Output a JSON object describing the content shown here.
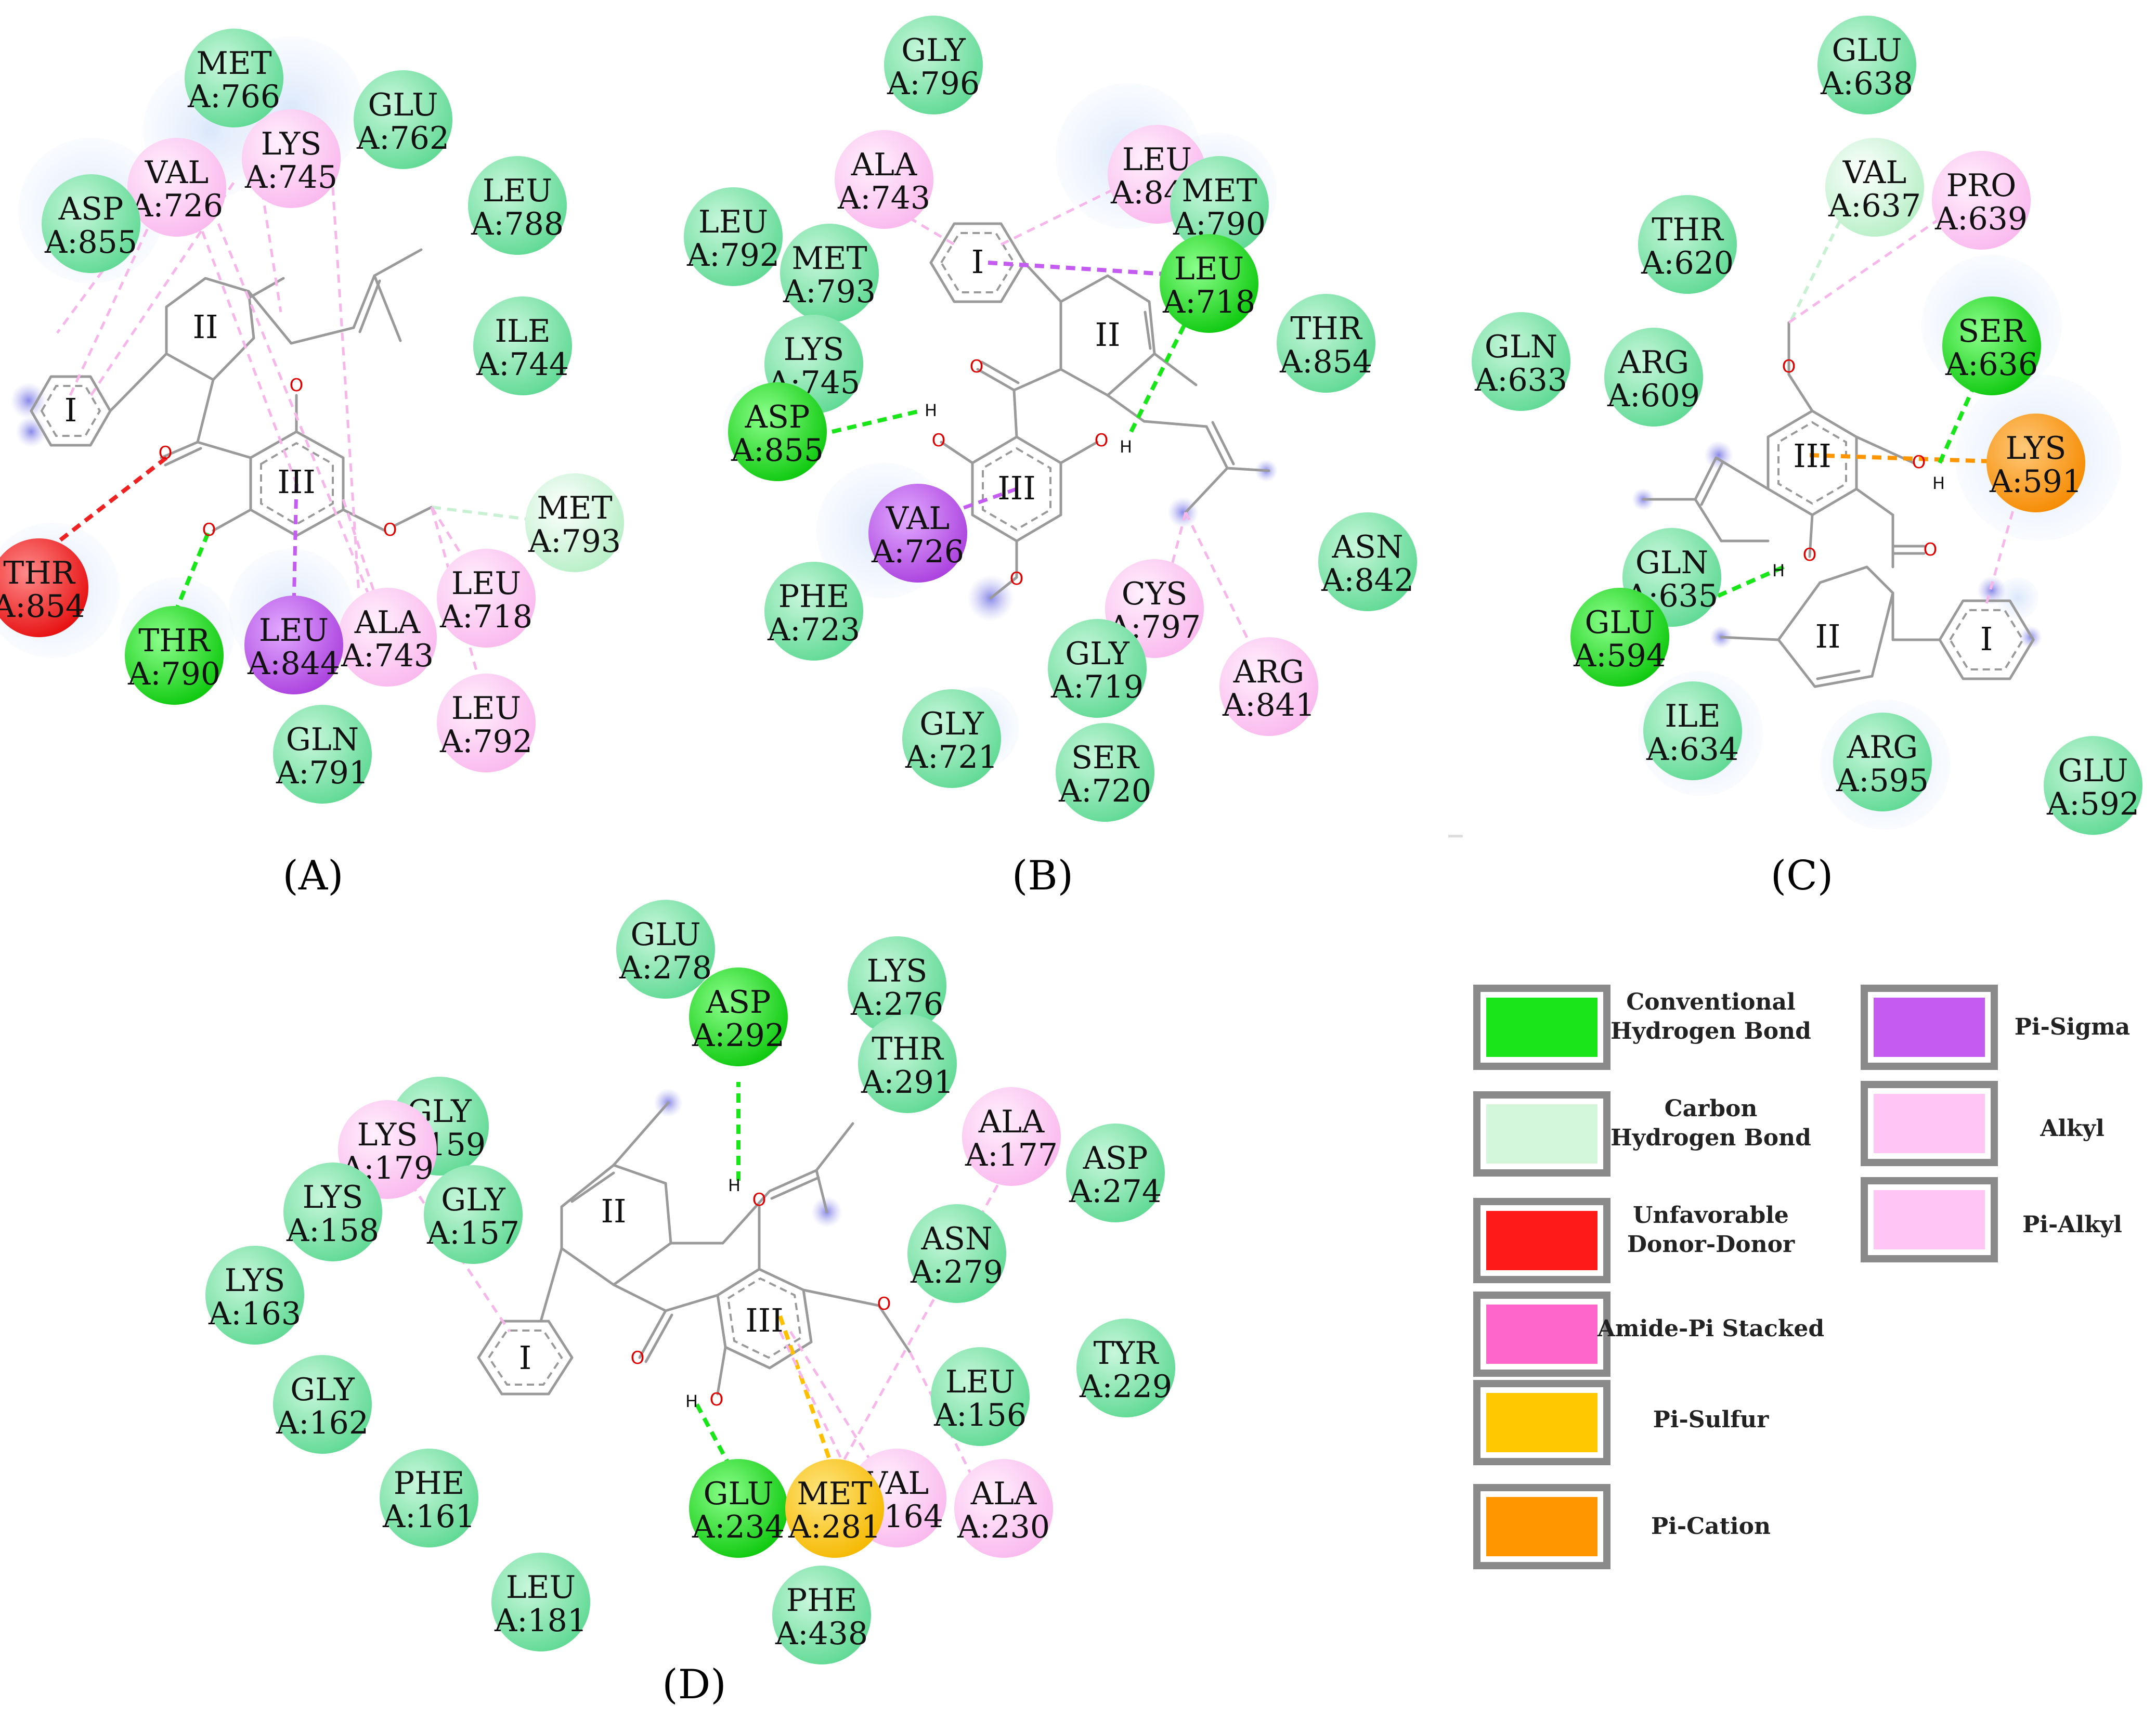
{
  "colors": {
    "conventional": "#19e619",
    "carbon": "#d2f7da",
    "unfavorable": "#ff1a1a",
    "amide": "#ff66cc",
    "sulfur": "#ffc800",
    "cation": "#ff9600",
    "sigma": "#c45cf2",
    "alkyl": "#ffc6f5",
    "pialkyl": "#ffc6f5",
    "vdw": "#82e8ac"
  },
  "legend": {
    "items": [
      {
        "label": [
          "Conventional",
          "Hydrogen Bond"
        ],
        "color": "#19e619"
      },
      {
        "label": [
          "Carbon",
          "Hydrogen Bond"
        ],
        "color": "#d2f7da"
      },
      {
        "label": [
          "Unfavorable",
          "Donor-Donor"
        ],
        "color": "#ff1a1a"
      },
      {
        "label": [
          "Amide-Pi Stacked"
        ],
        "color": "#ff66cc"
      },
      {
        "label": [
          "Pi-Sulfur"
        ],
        "color": "#ffc800"
      },
      {
        "label": [
          "Pi-Cation"
        ],
        "color": "#ff9600"
      },
      {
        "label": [
          "Pi-Sigma"
        ],
        "color": "#c45cf2"
      },
      {
        "label": [
          "Alkyl"
        ],
        "color": "#ffc6f5"
      },
      {
        "label": [
          "Pi-Alkyl"
        ],
        "color": "#ffc6f5"
      }
    ]
  },
  "panels": [
    {
      "label": "(A)",
      "rings": [
        "I",
        "II",
        "III"
      ],
      "residues": [
        {
          "name": "MET",
          "num": "A:766",
          "type": "vdw"
        },
        {
          "name": "GLU",
          "num": "A:762",
          "type": "vdw"
        },
        {
          "name": "LYS",
          "num": "A:745",
          "type": "alkyl"
        },
        {
          "name": "VAL",
          "num": "A:726",
          "type": "alkyl"
        },
        {
          "name": "ASP",
          "num": "A:855",
          "type": "vdw"
        },
        {
          "name": "LEU",
          "num": "A:788",
          "type": "vdw"
        },
        {
          "name": "ILE",
          "num": "A:744",
          "type": "vdw"
        },
        {
          "name": "MET",
          "num": "A:793",
          "type": "carbon"
        },
        {
          "name": "LEU",
          "num": "A:718",
          "type": "alkyl"
        },
        {
          "name": "ALA",
          "num": "A:743",
          "type": "alkyl"
        },
        {
          "name": "LEU",
          "num": "A:844",
          "type": "sigma"
        },
        {
          "name": "THR",
          "num": "A:790",
          "type": "conventional"
        },
        {
          "name": "THR",
          "num": "A:854",
          "type": "unfavorable"
        },
        {
          "name": "LEU",
          "num": "A:792",
          "type": "alkyl"
        },
        {
          "name": "GLN",
          "num": "A:791",
          "type": "vdw"
        }
      ]
    },
    {
      "label": "(B)",
      "rings": [
        "I",
        "II",
        "III"
      ],
      "residues": [
        {
          "name": "GLY",
          "num": "A:796",
          "type": "vdw"
        },
        {
          "name": "ALA",
          "num": "A:743",
          "type": "alkyl"
        },
        {
          "name": "LEU",
          "num": "A:844",
          "type": "alkyl"
        },
        {
          "name": "MET",
          "num": "A:790",
          "type": "vdw"
        },
        {
          "name": "LEU",
          "num": "A:718",
          "type": "conventional"
        },
        {
          "name": "LEU",
          "num": "A:792",
          "type": "vdw"
        },
        {
          "name": "MET",
          "num": "A:793",
          "type": "vdw"
        },
        {
          "name": "LYS",
          "num": "A:745",
          "type": "vdw"
        },
        {
          "name": "ASP",
          "num": "A:855",
          "type": "conventional"
        },
        {
          "name": "THR",
          "num": "A:854",
          "type": "vdw"
        },
        {
          "name": "VAL",
          "num": "A:726",
          "type": "sigma"
        },
        {
          "name": "PHE",
          "num": "A:723",
          "type": "vdw"
        },
        {
          "name": "ASN",
          "num": "A:842",
          "type": "vdw"
        },
        {
          "name": "CYS",
          "num": "A:797",
          "type": "alkyl"
        },
        {
          "name": "GLY",
          "num": "A:719",
          "type": "vdw"
        },
        {
          "name": "ARG",
          "num": "A:841",
          "type": "alkyl"
        },
        {
          "name": "GLY",
          "num": "A:721",
          "type": "vdw"
        },
        {
          "name": "SER",
          "num": "A:720",
          "type": "vdw"
        }
      ]
    },
    {
      "label": "(C)",
      "rings": [
        "I",
        "II",
        "III"
      ],
      "residues": [
        {
          "name": "GLU",
          "num": "A:638",
          "type": "vdw"
        },
        {
          "name": "VAL",
          "num": "A:637",
          "type": "carbon"
        },
        {
          "name": "PRO",
          "num": "A:639",
          "type": "alkyl"
        },
        {
          "name": "THR",
          "num": "A:620",
          "type": "vdw"
        },
        {
          "name": "GLN",
          "num": "A:633",
          "type": "vdw"
        },
        {
          "name": "ARG",
          "num": "A:609",
          "type": "vdw"
        },
        {
          "name": "SER",
          "num": "A:636",
          "type": "conventional"
        },
        {
          "name": "LYS",
          "num": "A:591",
          "type": "cation"
        },
        {
          "name": "GLN",
          "num": "A:635",
          "type": "vdw"
        },
        {
          "name": "GLU",
          "num": "A:594",
          "type": "conventional"
        },
        {
          "name": "ILE",
          "num": "A:634",
          "type": "vdw"
        },
        {
          "name": "ARG",
          "num": "A:595",
          "type": "vdw"
        },
        {
          "name": "GLU",
          "num": "A:592",
          "type": "vdw"
        }
      ]
    },
    {
      "label": "(D)",
      "rings": [
        "I",
        "II",
        "III"
      ],
      "residues": [
        {
          "name": "GLU",
          "num": "A:278",
          "type": "vdw"
        },
        {
          "name": "ASP",
          "num": "A:292",
          "type": "conventional"
        },
        {
          "name": "LYS",
          "num": "A:276",
          "type": "vdw"
        },
        {
          "name": "THR",
          "num": "A:291",
          "type": "vdw"
        },
        {
          "name": "GLY",
          "num": "A:159",
          "type": "vdw"
        },
        {
          "name": "LYS",
          "num": "A:179",
          "type": "alkyl"
        },
        {
          "name": "ALA",
          "num": "A:177",
          "type": "alkyl"
        },
        {
          "name": "ASP",
          "num": "A:274",
          "type": "vdw"
        },
        {
          "name": "LYS",
          "num": "A:158",
          "type": "vdw"
        },
        {
          "name": "GLY",
          "num": "A:157",
          "type": "vdw"
        },
        {
          "name": "ASN",
          "num": "A:279",
          "type": "vdw"
        },
        {
          "name": "LYS",
          "num": "A:163",
          "type": "vdw"
        },
        {
          "name": "TYR",
          "num": "A:229",
          "type": "vdw"
        },
        {
          "name": "LEU",
          "num": "A:156",
          "type": "vdw"
        },
        {
          "name": "GLY",
          "num": "A:162",
          "type": "vdw"
        },
        {
          "name": "PHE",
          "num": "A:161",
          "type": "vdw"
        },
        {
          "name": "VAL",
          "num": "A:164",
          "type": "alkyl"
        },
        {
          "name": "GLU",
          "num": "A:234",
          "type": "conventional"
        },
        {
          "name": "MET",
          "num": "A:281",
          "type": "sulfur"
        },
        {
          "name": "ALA",
          "num": "A:230",
          "type": "alkyl"
        },
        {
          "name": "LEU",
          "num": "A:181",
          "type": "vdw"
        },
        {
          "name": "PHE",
          "num": "A:438",
          "type": "vdw"
        }
      ]
    }
  ],
  "atoms": {
    "oxygen": "O",
    "hydrogen": "H"
  }
}
